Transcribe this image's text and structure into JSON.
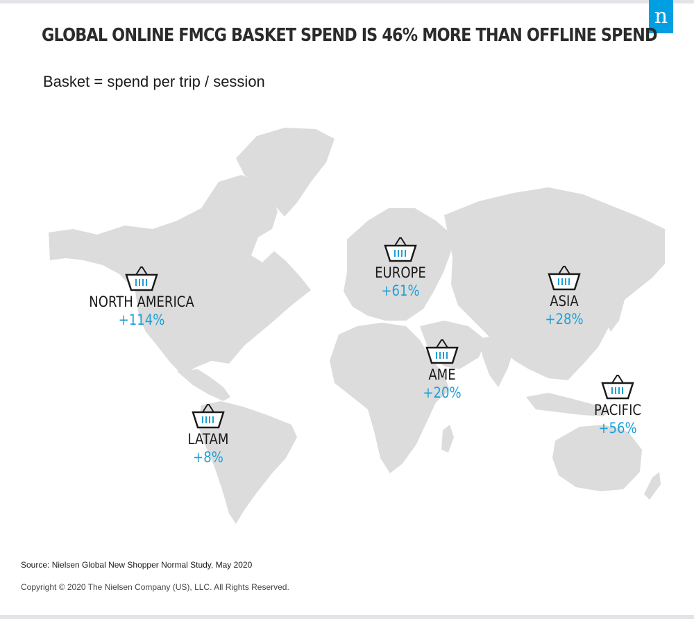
{
  "logo": "n",
  "title": "GLOBAL ONLINE FMCG BASKET SPEND IS 46% MORE THAN OFFLINE SPEND",
  "subtitle": "Basket = spend per trip / session",
  "regions": [
    {
      "name": "NORTH AMERICA",
      "value": "+114%"
    },
    {
      "name": "EUROPE",
      "value": "+61%"
    },
    {
      "name": "ASIA",
      "value": "+28%"
    },
    {
      "name": "AME",
      "value": "+20%"
    },
    {
      "name": "LATAM",
      "value": "+8%"
    },
    {
      "name": "PACIFIC",
      "value": "+56%"
    }
  ],
  "source": "Source: Nielsen Global New Shopper Normal Study, May 2020",
  "copyright": "Copyright © 2020 The Nielsen Company (US), LLC. All Rights Reserved.",
  "colors": {
    "accent": "#1ea0d8",
    "land": "#dcdcdc",
    "logo_bg": "#009fe3"
  },
  "icons": {
    "basket": "shopping-basket-icon"
  }
}
